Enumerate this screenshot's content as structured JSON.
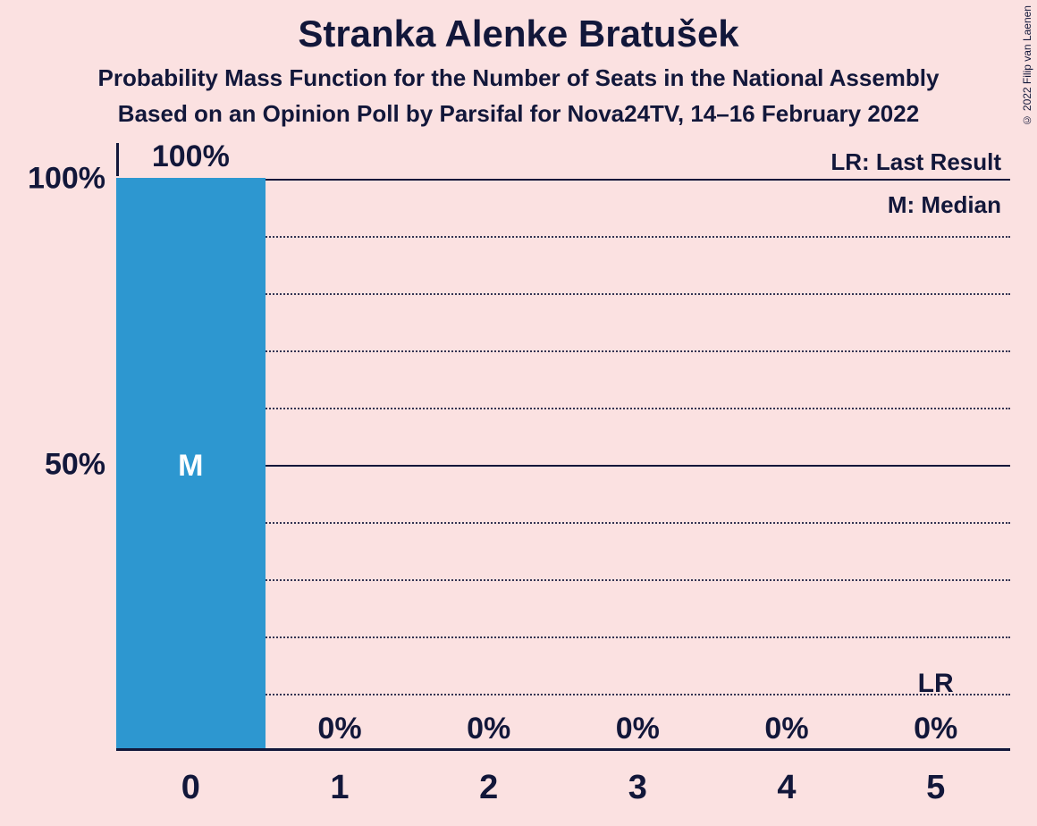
{
  "title": "Stranka Alenke Bratušek",
  "subtitle1": "Probability Mass Function for the Number of Seats in the National Assembly",
  "subtitle2": "Based on an Opinion Poll by Parsifal for Nova24TV, 14–16 February 2022",
  "copyright": "© 2022 Filip van Laenen",
  "chart": {
    "type": "bar",
    "background_color": "#fbe1e1",
    "text_color": "#12173a",
    "bar_color": "#2d97d0",
    "bar_border_color": "#fbe1e1",
    "categories": [
      "0",
      "1",
      "2",
      "3",
      "4",
      "5"
    ],
    "values": [
      100,
      0,
      0,
      0,
      0,
      0
    ],
    "value_labels": [
      "100%",
      "0%",
      "0%",
      "0%",
      "0%",
      "0%"
    ],
    "median_index": 0,
    "median_label": "M",
    "last_result_index": 5,
    "last_result_label": "LR",
    "ylim": [
      0,
      100
    ],
    "y_major_ticks": [
      50,
      100
    ],
    "y_major_labels": [
      "50%",
      "100%"
    ],
    "y_minor_step": 10,
    "bar_width_ratio": 1.0,
    "legend": {
      "lr": "LR: Last Result",
      "m": "M: Median"
    },
    "title_fontsize": 42,
    "subtitle_fontsize": 26,
    "axis_label_fontsize": 34,
    "x_tick_fontsize": 38,
    "value_label_fontsize": 34,
    "legend_fontsize": 26
  }
}
